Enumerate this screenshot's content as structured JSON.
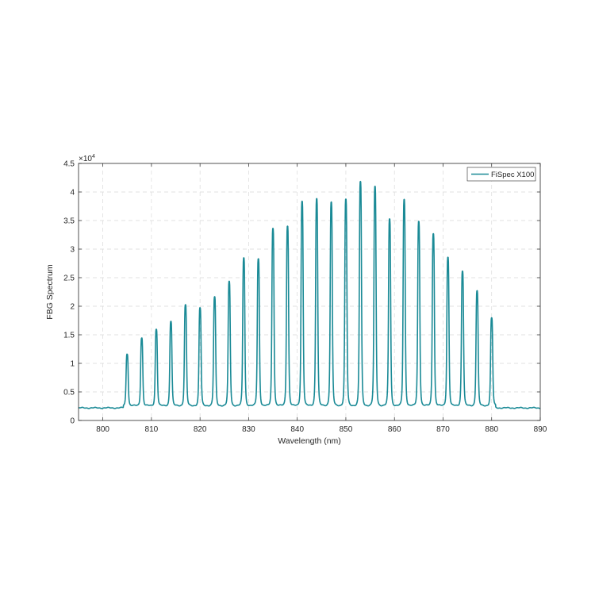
{
  "chart_data": {
    "type": "line",
    "title": "",
    "xlabel": "Wavelength (nm)",
    "ylabel": "FBG Spectrum",
    "y_exponent_label": "×10",
    "y_exponent_power": "4",
    "xlim": [
      795,
      890
    ],
    "ylim": [
      0,
      45000
    ],
    "x_ticks": [
      800,
      810,
      820,
      830,
      840,
      850,
      860,
      870,
      880,
      890
    ],
    "x_tick_labels": [
      "800",
      "810",
      "820",
      "830",
      "840",
      "850",
      "860",
      "870",
      "880",
      "890"
    ],
    "y_ticks": [
      0,
      5000,
      10000,
      15000,
      20000,
      25000,
      30000,
      35000,
      40000,
      45000
    ],
    "y_tick_labels": [
      "0",
      "0.5",
      "1",
      "1.5",
      "2",
      "2.5",
      "3",
      "3.5",
      "4",
      "4.5"
    ],
    "grid": true,
    "legend_position": "top-right",
    "baseline": 2200,
    "valley_level": 2600,
    "series": [
      {
        "name": "FiSpec X100",
        "color": "#1a8a96",
        "peaks": [
          {
            "x": 805,
            "y": 11700
          },
          {
            "x": 808,
            "y": 14500
          },
          {
            "x": 811,
            "y": 16000
          },
          {
            "x": 814,
            "y": 17400
          },
          {
            "x": 817,
            "y": 20200
          },
          {
            "x": 820,
            "y": 19700
          },
          {
            "x": 823,
            "y": 21600
          },
          {
            "x": 826,
            "y": 24300
          },
          {
            "x": 829,
            "y": 28500
          },
          {
            "x": 832,
            "y": 28300
          },
          {
            "x": 835,
            "y": 33700
          },
          {
            "x": 838,
            "y": 34100
          },
          {
            "x": 841,
            "y": 38400
          },
          {
            "x": 844,
            "y": 38900
          },
          {
            "x": 847,
            "y": 38200
          },
          {
            "x": 850,
            "y": 38700
          },
          {
            "x": 853,
            "y": 41800
          },
          {
            "x": 856,
            "y": 40900
          },
          {
            "x": 859,
            "y": 35300
          },
          {
            "x": 862,
            "y": 38700
          },
          {
            "x": 865,
            "y": 34900
          },
          {
            "x": 868,
            "y": 32800
          },
          {
            "x": 871,
            "y": 28600
          },
          {
            "x": 874,
            "y": 26200
          },
          {
            "x": 877,
            "y": 22700
          },
          {
            "x": 880,
            "y": 17900
          }
        ]
      }
    ]
  }
}
